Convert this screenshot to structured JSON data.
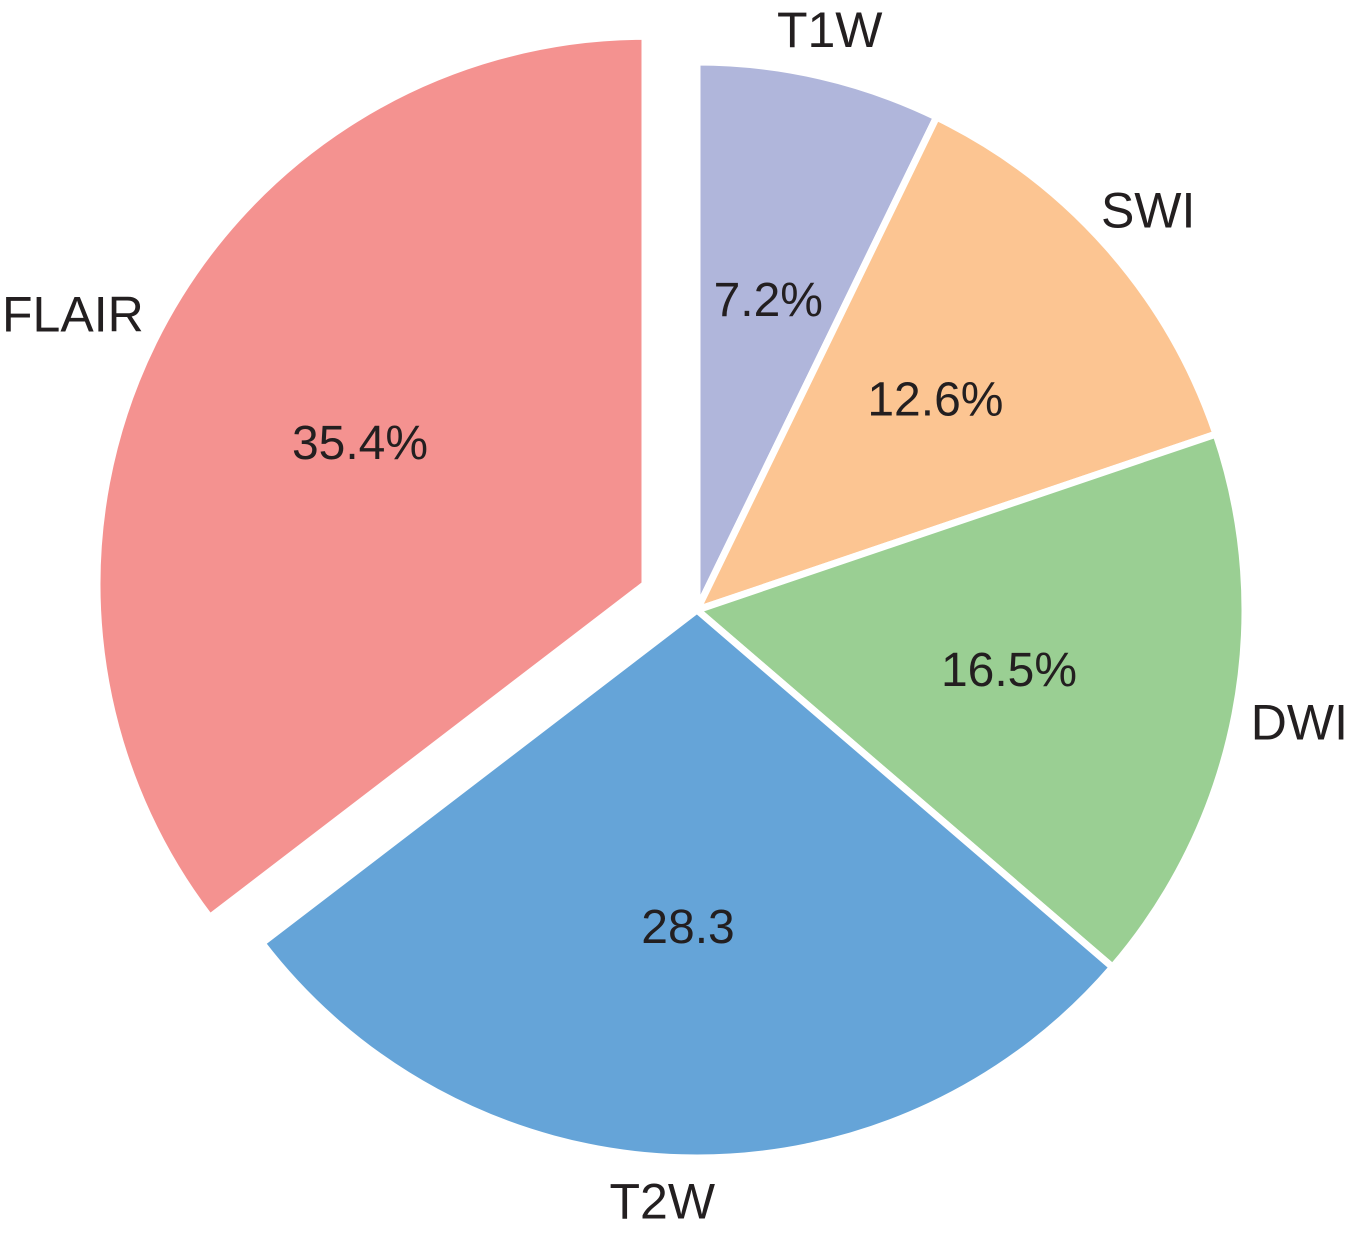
{
  "chart_data": {
    "type": "pie",
    "title": "",
    "slices": [
      {
        "label": "T1W",
        "value": 7.2,
        "value_label": "7.2%",
        "color": "#b0b6db"
      },
      {
        "label": "SWI",
        "value": 12.6,
        "value_label": "12.6%",
        "color": "#fcc592"
      },
      {
        "label": "DWI",
        "value": 16.5,
        "value_label": "16.5%",
        "color": "#9acf93"
      },
      {
        "label": "T2W",
        "value": 28.3,
        "value_label": "28.3",
        "color": "#65a4d8"
      },
      {
        "label": "FLAIR",
        "value": 35.4,
        "value_label": "35.4%",
        "color": "#f49290",
        "exploded": true
      }
    ],
    "start": "12 o'clock",
    "direction": "clockwise",
    "legend": "none"
  }
}
